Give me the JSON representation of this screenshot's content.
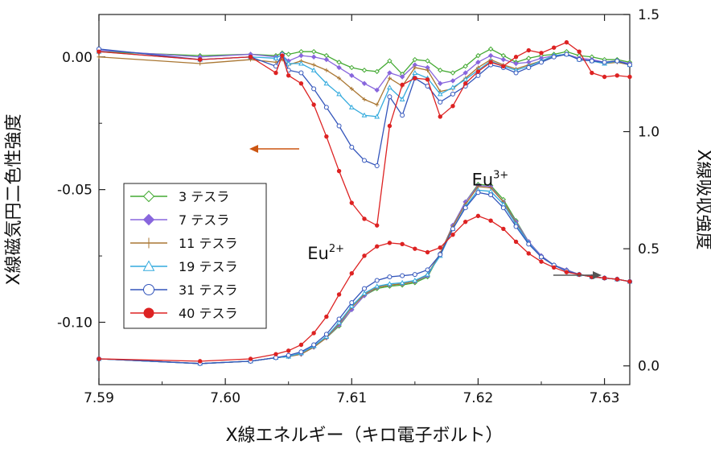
{
  "chart_data": {
    "type": "line",
    "xlabel": "X線エネルギー（キロ電子ボルト）",
    "ylabel_left": "X線磁気円二色性強度",
    "ylabel_right": "X線吸収強度",
    "xlim": [
      7.59,
      7.632
    ],
    "ylim_left": [
      -0.1235,
      0.016
    ],
    "ylim_right": [
      -0.08,
      1.5
    ],
    "x_ticks": [
      7.59,
      7.6,
      7.61,
      7.62,
      7.63
    ],
    "x_tick_labels": [
      "7.59",
      "7.60",
      "7.61",
      "7.62",
      "7.63"
    ],
    "y_left_ticks": [
      0.0,
      -0.05,
      -0.1
    ],
    "y_left_tick_labels": [
      "0.00",
      "-0.05",
      "-0.10"
    ],
    "y_right_ticks": [
      1.5,
      1.0,
      0.5,
      0.0
    ],
    "y_right_tick_labels": [
      "1.5",
      "1.0",
      "0.5",
      "0.0"
    ],
    "grid": false,
    "legend_position": "bottom-left",
    "annotations": {
      "eu3_base": "Eu",
      "eu3_sup": "3+",
      "eu2_base": "Eu",
      "eu2_sup": "2+"
    },
    "annotation_positions": {
      "eu3": [
        7.6195,
        0.77
      ],
      "eu2": [
        7.6065,
        0.455
      ]
    },
    "arrow_xmcd_color": "#cc5511",
    "arrow_xas_color": "#555555",
    "xmcd_x": [
      7.59,
      7.598,
      7.602,
      7.604,
      7.6045,
      7.605,
      7.606,
      7.607,
      7.608,
      7.609,
      7.61,
      7.611,
      7.612,
      7.613,
      7.614,
      7.615,
      7.616,
      7.617,
      7.618,
      7.619,
      7.62,
      7.621,
      7.622,
      7.623,
      7.624,
      7.625,
      7.626,
      7.627,
      7.628,
      7.629,
      7.63,
      7.631,
      7.632
    ],
    "xas_x": [
      7.59,
      7.598,
      7.602,
      7.604,
      7.605,
      7.606,
      7.607,
      7.608,
      7.609,
      7.61,
      7.611,
      7.612,
      7.613,
      7.614,
      7.615,
      7.616,
      7.617,
      7.618,
      7.619,
      7.62,
      7.621,
      7.622,
      7.623,
      7.624,
      7.625,
      7.626,
      7.627,
      7.628,
      7.629,
      7.63,
      7.631,
      7.632
    ],
    "series": [
      {
        "name": "3 テスラ",
        "color": "#44aa33",
        "marker": "diamond-open",
        "xmcd": [
          0.002,
          0.0005,
          0.001,
          0.0005,
          0.0015,
          0.001,
          0.002,
          0.002,
          0.0005,
          -0.002,
          -0.004,
          -0.005,
          -0.0055,
          -0.0015,
          -0.0065,
          -0.001,
          -0.0015,
          -0.005,
          -0.006,
          -0.0035,
          0.0005,
          0.003,
          0.0005,
          -0.002,
          -0.0005,
          0.0005,
          0.001,
          0.002,
          0.0005,
          0.0,
          -0.001,
          -0.001,
          -0.002
        ],
        "xas": [
          0.03,
          0.01,
          0.02,
          0.035,
          0.04,
          0.05,
          0.08,
          0.12,
          0.17,
          0.24,
          0.3,
          0.33,
          0.34,
          0.345,
          0.355,
          0.38,
          0.48,
          0.6,
          0.7,
          0.775,
          0.77,
          0.71,
          0.62,
          0.53,
          0.47,
          0.43,
          0.41,
          0.39,
          0.38,
          0.375,
          0.37,
          0.36
        ]
      },
      {
        "name": "7 テスラ",
        "color": "#8866dd",
        "marker": "diamond",
        "xmcd": [
          0.0025,
          0.0,
          0.001,
          0.0,
          0.0005,
          -0.0015,
          0.0005,
          0.0,
          -0.001,
          -0.004,
          -0.007,
          -0.01,
          -0.0125,
          -0.006,
          -0.0075,
          -0.003,
          -0.004,
          -0.01,
          -0.009,
          -0.006,
          -0.002,
          0.0005,
          -0.001,
          -0.0025,
          -0.002,
          -0.0005,
          0.0005,
          0.001,
          -0.0005,
          -0.001,
          -0.002,
          -0.0015,
          -0.0025
        ],
        "xas": [
          0.03,
          0.01,
          0.02,
          0.035,
          0.04,
          0.05,
          0.08,
          0.12,
          0.175,
          0.24,
          0.3,
          0.335,
          0.345,
          0.35,
          0.36,
          0.385,
          0.48,
          0.6,
          0.7,
          0.77,
          0.765,
          0.7,
          0.615,
          0.53,
          0.47,
          0.43,
          0.41,
          0.39,
          0.38,
          0.375,
          0.37,
          0.36
        ]
      },
      {
        "name": "11 テスラ",
        "color": "#aa7733",
        "marker": "plus",
        "xmcd": [
          0.0,
          -0.0025,
          -0.001,
          -0.002,
          -0.001,
          -0.003,
          -0.0015,
          -0.003,
          -0.005,
          -0.008,
          -0.012,
          -0.016,
          -0.018,
          -0.008,
          -0.011,
          -0.004,
          -0.005,
          -0.013,
          -0.012,
          -0.008,
          -0.004,
          -0.001,
          -0.003,
          -0.0045,
          -0.003,
          -0.0015,
          0.0,
          0.001,
          -0.001,
          -0.0015,
          -0.0025,
          -0.002,
          -0.003
        ],
        "xas": [
          0.03,
          0.01,
          0.02,
          0.035,
          0.04,
          0.05,
          0.08,
          0.12,
          0.18,
          0.25,
          0.305,
          0.335,
          0.345,
          0.35,
          0.36,
          0.39,
          0.48,
          0.595,
          0.69,
          0.765,
          0.76,
          0.7,
          0.61,
          0.525,
          0.465,
          0.43,
          0.405,
          0.39,
          0.38,
          0.375,
          0.37,
          0.36
        ]
      },
      {
        "name": "19 テスラ",
        "color": "#33aadd",
        "marker": "triangle-open",
        "xmcd": [
          0.002,
          -0.001,
          0.0,
          -0.0005,
          0.001,
          -0.0025,
          -0.0025,
          -0.005,
          -0.01,
          -0.014,
          -0.019,
          -0.022,
          -0.0225,
          -0.0115,
          -0.016,
          -0.006,
          -0.008,
          -0.014,
          -0.0115,
          -0.0085,
          -0.005,
          -0.0015,
          -0.0035,
          -0.005,
          -0.0035,
          -0.0015,
          0.0005,
          0.001,
          -0.001,
          -0.0015,
          -0.0025,
          -0.0015,
          -0.003
        ],
        "xas": [
          0.03,
          0.01,
          0.02,
          0.035,
          0.04,
          0.055,
          0.085,
          0.125,
          0.185,
          0.255,
          0.31,
          0.34,
          0.35,
          0.355,
          0.365,
          0.39,
          0.47,
          0.585,
          0.68,
          0.75,
          0.745,
          0.69,
          0.605,
          0.525,
          0.465,
          0.43,
          0.405,
          0.39,
          0.38,
          0.375,
          0.37,
          0.36
        ]
      },
      {
        "name": "31 テスラ",
        "color": "#3355bb",
        "marker": "circle-open",
        "xmcd": [
          0.003,
          -0.001,
          0.0,
          -0.0035,
          0.001,
          -0.005,
          -0.006,
          -0.012,
          -0.019,
          -0.026,
          -0.034,
          -0.039,
          -0.041,
          -0.015,
          -0.022,
          -0.008,
          -0.011,
          -0.017,
          -0.014,
          -0.011,
          -0.007,
          -0.003,
          -0.004,
          -0.006,
          -0.004,
          -0.002,
          0.0,
          0.001,
          -0.001,
          -0.0015,
          -0.002,
          -0.0015,
          -0.003
        ],
        "xas": [
          0.03,
          0.01,
          0.02,
          0.035,
          0.045,
          0.06,
          0.09,
          0.135,
          0.2,
          0.27,
          0.33,
          0.365,
          0.38,
          0.385,
          0.39,
          0.41,
          0.475,
          0.585,
          0.675,
          0.74,
          0.73,
          0.675,
          0.595,
          0.52,
          0.465,
          0.43,
          0.405,
          0.39,
          0.38,
          0.375,
          0.37,
          0.36
        ]
      },
      {
        "name": "40 テスラ",
        "color": "#dd2222",
        "marker": "circle",
        "xmcd": [
          0.002,
          -0.001,
          0.0,
          -0.006,
          0.0005,
          -0.007,
          -0.01,
          -0.018,
          -0.03,
          -0.043,
          -0.055,
          -0.061,
          -0.0635,
          -0.026,
          -0.0105,
          -0.008,
          -0.0085,
          -0.0225,
          -0.0185,
          -0.01,
          -0.0055,
          -0.002,
          -0.0035,
          0.0,
          0.0025,
          0.0015,
          0.0035,
          0.0055,
          0.002,
          -0.006,
          -0.0075,
          -0.007,
          -0.0075
        ],
        "xas": [
          0.03,
          0.02,
          0.03,
          0.05,
          0.065,
          0.09,
          0.14,
          0.21,
          0.305,
          0.395,
          0.47,
          0.51,
          0.525,
          0.52,
          0.5,
          0.485,
          0.505,
          0.56,
          0.615,
          0.64,
          0.62,
          0.585,
          0.53,
          0.48,
          0.445,
          0.42,
          0.4,
          0.39,
          0.38,
          0.375,
          0.37,
          0.36
        ]
      }
    ]
  }
}
